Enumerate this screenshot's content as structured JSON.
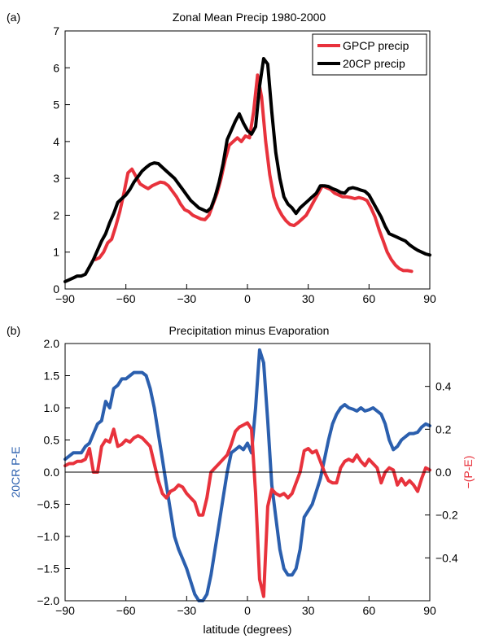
{
  "chart_data": [
    {
      "panel_label": "(a)",
      "type": "line",
      "title": "Zonal Mean Precip 1980-2000",
      "xlabel": "",
      "ylabel": "",
      "xlim": [
        -90,
        90
      ],
      "ylim": [
        0,
        7
      ],
      "xticks": [
        -90,
        -60,
        -30,
        0,
        30,
        60,
        90
      ],
      "yticks": [
        0,
        1,
        2,
        3,
        4,
        5,
        6,
        7
      ],
      "xtick_labels": [
        "−90",
        "−60",
        "−30",
        "0",
        "30",
        "60",
        "90"
      ],
      "ytick_labels": [
        "0",
        "1",
        "2",
        "3",
        "4",
        "5",
        "6",
        "7"
      ],
      "legend_position": "top-right",
      "grid": false,
      "series": [
        {
          "name": "GPCP precip",
          "color": "#e8323c",
          "x": [
            -75,
            -73,
            -71,
            -69,
            -67,
            -65,
            -63,
            -61,
            -59,
            -57,
            -55,
            -53,
            -51,
            -49,
            -47,
            -45,
            -43,
            -41,
            -39,
            -37,
            -35,
            -33,
            -31,
            -29,
            -27,
            -25,
            -23,
            -21,
            -19,
            -17,
            -15,
            -13,
            -11,
            -9,
            -7,
            -5,
            -3,
            -1,
            1,
            3,
            5,
            7,
            9,
            11,
            13,
            15,
            17,
            19,
            21,
            23,
            25,
            27,
            29,
            31,
            33,
            35,
            37,
            39,
            41,
            43,
            45,
            47,
            49,
            51,
            53,
            55,
            57,
            59,
            61,
            63,
            65,
            67,
            69,
            71,
            73,
            75,
            77,
            79,
            81
          ],
          "values": [
            0.8,
            0.85,
            1.0,
            1.25,
            1.35,
            1.7,
            2.1,
            2.6,
            3.15,
            3.25,
            3.05,
            2.85,
            2.78,
            2.72,
            2.8,
            2.85,
            2.9,
            2.88,
            2.8,
            2.65,
            2.5,
            2.3,
            2.15,
            2.1,
            2.0,
            1.95,
            1.9,
            1.88,
            2.0,
            2.3,
            2.6,
            3.0,
            3.5,
            3.9,
            4.0,
            4.1,
            4.0,
            4.15,
            4.1,
            4.8,
            5.8,
            5.2,
            4.0,
            3.1,
            2.5,
            2.2,
            2.0,
            1.85,
            1.75,
            1.72,
            1.8,
            1.9,
            2.0,
            2.2,
            2.4,
            2.6,
            2.8,
            2.75,
            2.7,
            2.6,
            2.55,
            2.5,
            2.5,
            2.48,
            2.45,
            2.48,
            2.45,
            2.4,
            2.2,
            1.95,
            1.6,
            1.3,
            1.0,
            0.8,
            0.65,
            0.55,
            0.5,
            0.5,
            0.48
          ]
        },
        {
          "name": "20CP precip",
          "color": "#000000",
          "x": [
            -90,
            -88,
            -86,
            -84,
            -82,
            -80,
            -78,
            -76,
            -74,
            -72,
            -70,
            -68,
            -66,
            -64,
            -62,
            -60,
            -58,
            -56,
            -54,
            -52,
            -50,
            -48,
            -46,
            -44,
            -42,
            -40,
            -38,
            -36,
            -34,
            -32,
            -30,
            -28,
            -26,
            -24,
            -22,
            -20,
            -18,
            -16,
            -14,
            -12,
            -10,
            -8,
            -6,
            -4,
            -2,
            0,
            2,
            4,
            6,
            8,
            10,
            12,
            14,
            16,
            18,
            20,
            22,
            24,
            26,
            28,
            30,
            32,
            34,
            36,
            38,
            40,
            42,
            44,
            46,
            48,
            50,
            52,
            54,
            56,
            58,
            60,
            62,
            64,
            66,
            68,
            70,
            72,
            74,
            76,
            78,
            80,
            82,
            84,
            86,
            88,
            90
          ],
          "values": [
            0.2,
            0.25,
            0.3,
            0.35,
            0.35,
            0.4,
            0.6,
            0.8,
            1.05,
            1.3,
            1.5,
            1.8,
            2.05,
            2.35,
            2.45,
            2.55,
            2.7,
            2.9,
            3.05,
            3.2,
            3.3,
            3.38,
            3.42,
            3.4,
            3.3,
            3.2,
            3.1,
            3.0,
            2.85,
            2.7,
            2.55,
            2.4,
            2.3,
            2.2,
            2.15,
            2.1,
            2.2,
            2.5,
            2.9,
            3.4,
            4.05,
            4.3,
            4.55,
            4.75,
            4.5,
            4.3,
            4.2,
            4.4,
            5.5,
            6.25,
            6.1,
            4.8,
            3.7,
            3.0,
            2.5,
            2.3,
            2.2,
            2.05,
            2.2,
            2.3,
            2.4,
            2.5,
            2.6,
            2.8,
            2.8,
            2.78,
            2.72,
            2.68,
            2.62,
            2.6,
            2.72,
            2.75,
            2.72,
            2.68,
            2.65,
            2.55,
            2.35,
            2.15,
            1.95,
            1.7,
            1.5,
            1.45,
            1.4,
            1.35,
            1.3,
            1.2,
            1.12,
            1.05,
            1.0,
            0.95,
            0.92
          ]
        }
      ]
    },
    {
      "panel_label": "(b)",
      "type": "line",
      "title": "Precipitation minus Evaporation",
      "xlabel": "latitude (degrees)",
      "ylabel_left": "20CR P-E",
      "ylabel_right": "−(P-E)",
      "xlim": [
        -90,
        90
      ],
      "ylim_left": [
        -2.0,
        2.0
      ],
      "ylim_right": [
        -0.6,
        0.6
      ],
      "xticks": [
        -90,
        -60,
        -30,
        0,
        30,
        60,
        90
      ],
      "xtick_labels": [
        "−90",
        "−60",
        "−30",
        "0",
        "30",
        "60",
        "90"
      ],
      "yticks_left": [
        -2.0,
        -1.5,
        -1.0,
        -0.5,
        0.0,
        0.5,
        1.0,
        1.5,
        2.0
      ],
      "ytick_labels_left": [
        "−2.0",
        "−1.5",
        "−1.0",
        "−0.5",
        "0.0",
        "0.5",
        "1.0",
        "1.5",
        "2.0"
      ],
      "yticks_right": [
        -0.4,
        -0.2,
        0.0,
        0.2,
        0.4
      ],
      "ytick_labels_right": [
        "−0.4",
        "−0.2",
        "0.0",
        "0.2",
        "0.4"
      ],
      "zero_line": true,
      "grid": false,
      "series": [
        {
          "name": "",
          "axis": "left",
          "color": "#2b5fae",
          "x": [
            -90,
            -88,
            -86,
            -84,
            -82,
            -80,
            -78,
            -76,
            -74,
            -72,
            -70,
            -68,
            -66,
            -64,
            -62,
            -60,
            -58,
            -56,
            -54,
            -52,
            -50,
            -48,
            -46,
            -44,
            -42,
            -40,
            -38,
            -36,
            -34,
            -32,
            -30,
            -28,
            -26,
            -24,
            -22,
            -20,
            -18,
            -16,
            -14,
            -12,
            -10,
            -8,
            -6,
            -4,
            -2,
            0,
            2,
            4,
            6,
            8,
            10,
            12,
            14,
            16,
            18,
            20,
            22,
            24,
            26,
            28,
            30,
            32,
            34,
            36,
            38,
            40,
            42,
            44,
            46,
            48,
            50,
            52,
            54,
            56,
            58,
            60,
            62,
            64,
            66,
            68,
            70,
            72,
            74,
            76,
            78,
            80,
            82,
            84,
            86,
            88,
            90
          ],
          "values": [
            0.2,
            0.25,
            0.3,
            0.3,
            0.3,
            0.4,
            0.45,
            0.6,
            0.75,
            0.8,
            1.1,
            1.0,
            1.3,
            1.35,
            1.45,
            1.45,
            1.5,
            1.55,
            1.55,
            1.55,
            1.5,
            1.3,
            1.0,
            0.6,
            0.2,
            -0.2,
            -0.6,
            -1.0,
            -1.2,
            -1.35,
            -1.5,
            -1.7,
            -1.9,
            -2.0,
            -2.0,
            -1.9,
            -1.6,
            -1.2,
            -0.8,
            -0.4,
            0.0,
            0.3,
            0.35,
            0.4,
            0.35,
            0.45,
            0.3,
            1.0,
            1.9,
            1.7,
            0.8,
            -0.2,
            -0.7,
            -1.2,
            -1.5,
            -1.6,
            -1.6,
            -1.5,
            -1.2,
            -0.7,
            -0.6,
            -0.5,
            -0.3,
            -0.1,
            0.2,
            0.5,
            0.75,
            0.9,
            1.0,
            1.05,
            1.0,
            0.98,
            0.95,
            1.0,
            0.95,
            0.97,
            1.0,
            0.95,
            0.9,
            0.75,
            0.5,
            0.35,
            0.4,
            0.5,
            0.55,
            0.6,
            0.6,
            0.62,
            0.7,
            0.75,
            0.72
          ]
        },
        {
          "name": "",
          "axis": "right",
          "color": "#e8323c",
          "x": [
            -90,
            -88,
            -86,
            -84,
            -82,
            -80,
            -78,
            -76,
            -74,
            -72,
            -70,
            -68,
            -66,
            -64,
            -62,
            -60,
            -58,
            -56,
            -54,
            -52,
            -50,
            -48,
            -46,
            -44,
            -42,
            -40,
            -38,
            -36,
            -34,
            -32,
            -30,
            -28,
            -26,
            -24,
            -22,
            -20,
            -18,
            -16,
            -14,
            -12,
            -10,
            -8,
            -6,
            -4,
            -2,
            0,
            2,
            4,
            6,
            8,
            10,
            12,
            14,
            16,
            18,
            20,
            22,
            24,
            26,
            28,
            30,
            32,
            34,
            36,
            38,
            40,
            42,
            44,
            46,
            48,
            50,
            52,
            54,
            56,
            58,
            60,
            62,
            64,
            66,
            68,
            70,
            72,
            74,
            76,
            78,
            80,
            82,
            84,
            86,
            88,
            90
          ],
          "values": [
            0.03,
            0.04,
            0.04,
            0.05,
            0.05,
            0.06,
            0.11,
            0.0,
            0.0,
            0.12,
            0.15,
            0.14,
            0.2,
            0.12,
            0.13,
            0.15,
            0.14,
            0.16,
            0.17,
            0.16,
            0.14,
            0.12,
            0.04,
            -0.04,
            -0.1,
            -0.12,
            -0.09,
            -0.08,
            -0.06,
            -0.07,
            -0.1,
            -0.12,
            -0.14,
            -0.2,
            -0.2,
            -0.12,
            0.0,
            0.02,
            0.04,
            0.06,
            0.08,
            0.13,
            0.19,
            0.21,
            0.22,
            0.23,
            0.2,
            -0.1,
            -0.5,
            -0.58,
            -0.16,
            -0.08,
            -0.1,
            -0.11,
            -0.1,
            -0.12,
            -0.1,
            -0.05,
            0.0,
            0.1,
            0.11,
            0.09,
            0.1,
            0.05,
            0.0,
            -0.04,
            -0.05,
            -0.05,
            0.02,
            0.05,
            0.06,
            0.05,
            0.08,
            0.05,
            0.03,
            0.06,
            0.04,
            0.02,
            -0.05,
            0.0,
            0.02,
            0.01,
            -0.06,
            -0.03,
            -0.06,
            -0.04,
            -0.06,
            -0.09,
            -0.03,
            0.02,
            0.01
          ]
        }
      ]
    }
  ]
}
